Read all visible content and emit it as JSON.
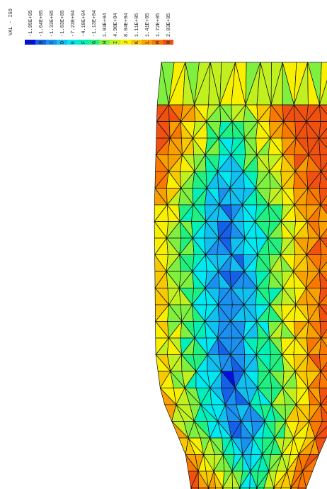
{
  "legend": {
    "title": "VAL - ISO",
    "entries": [
      {
        "letter": "A",
        "label": "-1.95E+05",
        "color": "#0010e0"
      },
      {
        "letter": "B",
        "label": "-1.64E+05",
        "color": "#1560e8"
      },
      {
        "letter": "C",
        "label": "-1.33E+05",
        "color": "#1a90f0"
      },
      {
        "letter": "D",
        "label": "-1.03E+05",
        "color": "#10c0f0"
      },
      {
        "letter": "E",
        "label": "-7.23E+04",
        "color": "#00e8f0"
      },
      {
        "letter": "F",
        "label": "-4.18E+04",
        "color": "#00f0b8"
      },
      {
        "letter": "G",
        "label": "-1.13E+04",
        "color": "#20f080"
      },
      {
        "letter": "H",
        "label": "1.93E+04",
        "color": "#80f040"
      },
      {
        "letter": "I",
        "label": "4.98E+04",
        "color": "#c0f020"
      },
      {
        "letter": "J",
        "label": "8.04E+04",
        "color": "#f8f000"
      },
      {
        "letter": "K",
        "label": "1.11E+05",
        "color": "#f8c800"
      },
      {
        "letter": "L",
        "label": "1.41E+05",
        "color": "#f8a000"
      },
      {
        "letter": "M",
        "label": "1.72E+05",
        "color": "#f87800"
      },
      {
        "letter": "N",
        "label": "2.03E+05",
        "color": "#f05010"
      }
    ]
  }
}
